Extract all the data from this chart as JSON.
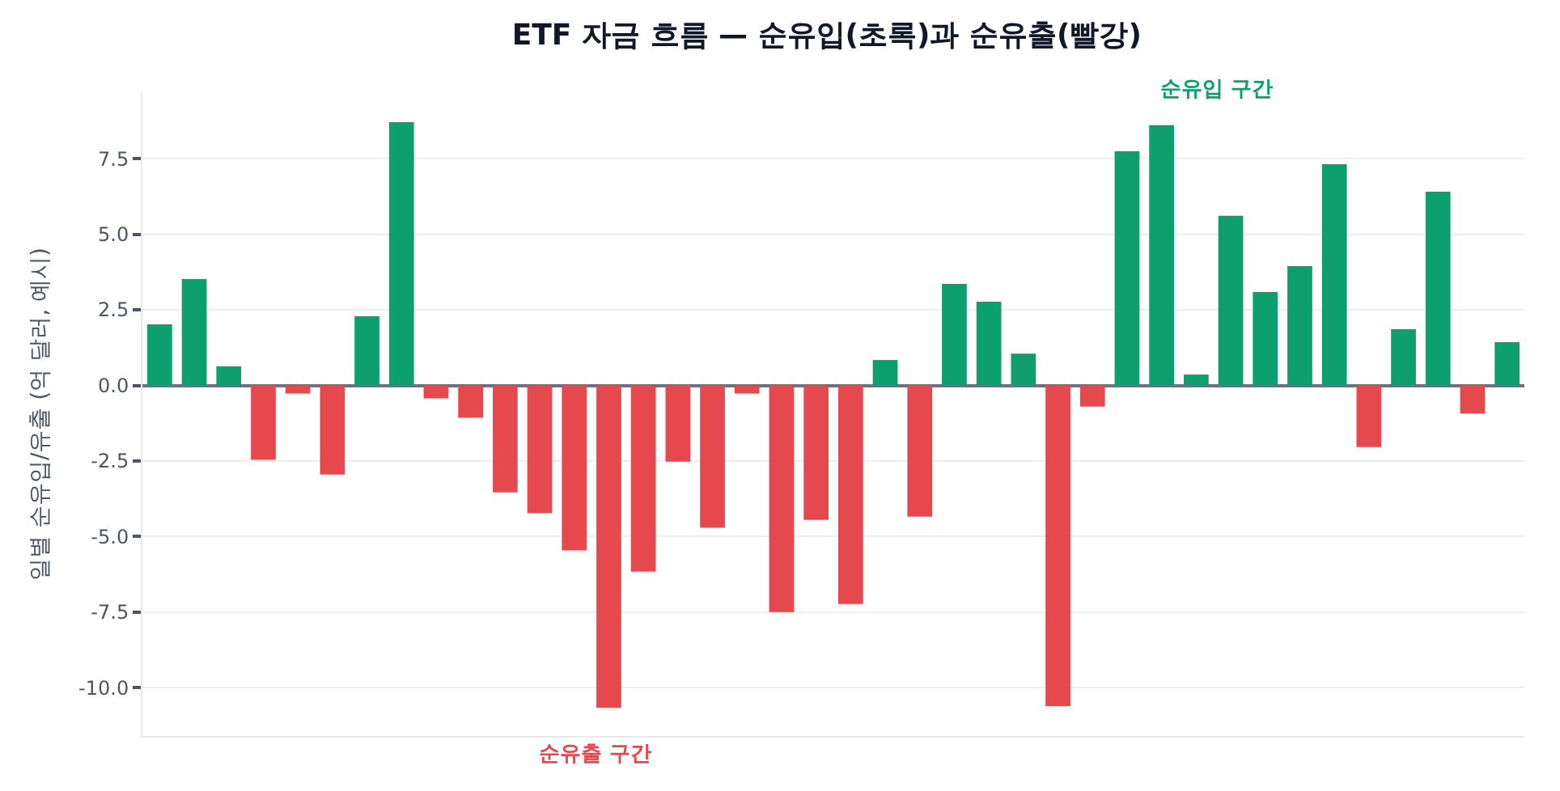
{
  "chart_data": {
    "type": "bar",
    "title": "ETF 자금 흐름 — 순유입(초록)과 순유출(빨강)",
    "ylabel": "일별 순유입/유출 (억 달러, 예시)",
    "categories": [
      null,
      null,
      null,
      null,
      null,
      null,
      null,
      null,
      null,
      null,
      null,
      null,
      null,
      null,
      null,
      null,
      null,
      null,
      null,
      null,
      null,
      null,
      null,
      null,
      null,
      null,
      null,
      null,
      null,
      null,
      null,
      null,
      null,
      null,
      null,
      null,
      null,
      null,
      null,
      null
    ],
    "values": [
      2.02,
      3.52,
      0.63,
      -2.46,
      -0.27,
      -2.95,
      2.29,
      8.71,
      -0.43,
      -1.07,
      -3.54,
      -4.23,
      -5.46,
      -10.66,
      -6.16,
      -2.52,
      -4.71,
      -0.27,
      -7.5,
      -4.45,
      -7.23,
      0.84,
      -4.34,
      3.36,
      2.77,
      1.05,
      -10.61,
      -0.7,
      7.75,
      8.61,
      0.36,
      5.61,
      3.09,
      3.95,
      7.32,
      -2.04,
      1.86,
      6.41,
      -0.93,
      1.43
    ],
    "colors": [
      "#0e9f6e",
      "#0e9f6e",
      "#0e9f6e",
      "#e5484d",
      "#e5484d",
      "#e5484d",
      "#0e9f6e",
      "#0e9f6e",
      "#e5484d",
      "#e5484d",
      "#e5484d",
      "#e5484d",
      "#e5484d",
      "#e5484d",
      "#e5484d",
      "#e5484d",
      "#e5484d",
      "#e5484d",
      "#e5484d",
      "#e5484d",
      "#e5484d",
      "#0e9f6e",
      "#e5484d",
      "#0e9f6e",
      "#0e9f6e",
      "#0e9f6e",
      "#e5484d",
      "#e5484d",
      "#0e9f6e",
      "#0e9f6e",
      "#0e9f6e",
      "#0e9f6e",
      "#0e9f6e",
      "#0e9f6e",
      "#0e9f6e",
      "#e5484d",
      "#0e9f6e",
      "#0e9f6e",
      "#e5484d",
      "#0e9f6e"
    ],
    "ylim": [
      -11.6,
      9.7
    ],
    "yticks": [
      {
        "value": -10,
        "label": "-10.0"
      },
      {
        "value": -7.5,
        "label": "-7.5"
      },
      {
        "value": -5,
        "label": "-5.0"
      },
      {
        "value": -2.5,
        "label": "-2.5"
      },
      {
        "value": 0,
        "label": "0.0"
      },
      {
        "value": 2.5,
        "label": "2.5"
      },
      {
        "value": 5,
        "label": "5.0"
      },
      {
        "value": 7.5,
        "label": "7.5"
      }
    ],
    "grid": "y",
    "tick_labels": "y",
    "annotations": [
      "순유출 구간",
      "순유입 구간"
    ]
  }
}
